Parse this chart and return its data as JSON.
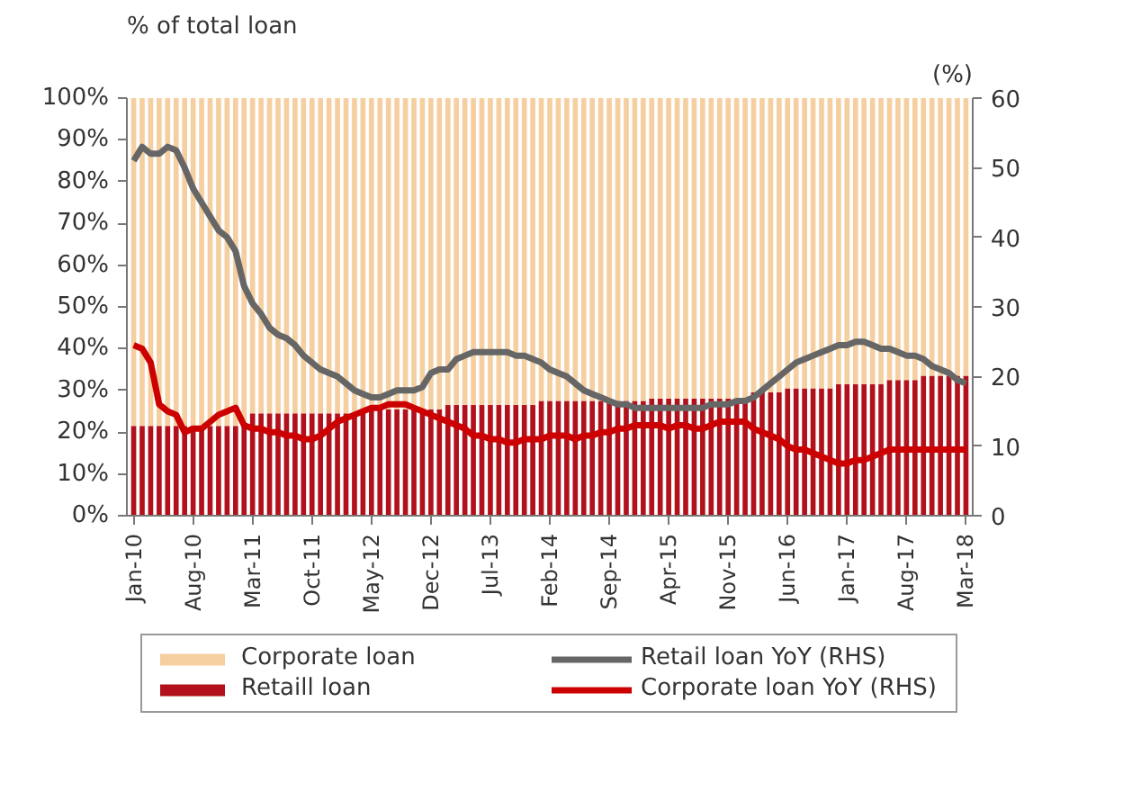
{
  "chart_data": {
    "type": "bar",
    "stacked": true,
    "ylabel": "% of total loan",
    "y2label": "(%)",
    "categories": [
      "Jan-10",
      null,
      null,
      null,
      null,
      null,
      null,
      "Aug-10",
      null,
      null,
      null,
      null,
      null,
      null,
      "Mar-11",
      null,
      null,
      null,
      null,
      null,
      null,
      "Oct-11",
      null,
      null,
      null,
      null,
      null,
      null,
      "May-12",
      null,
      null,
      null,
      null,
      null,
      null,
      "Dec-12",
      null,
      null,
      null,
      null,
      null,
      null,
      "Jul-13",
      null,
      null,
      null,
      null,
      null,
      null,
      "Feb-14",
      null,
      null,
      null,
      null,
      null,
      null,
      "Sep-14",
      null,
      null,
      null,
      null,
      null,
      null,
      "Apr-15",
      null,
      null,
      null,
      null,
      null,
      null,
      "Nov-15",
      null,
      null,
      null,
      null,
      null,
      null,
      "Jun-16",
      null,
      null,
      null,
      null,
      null,
      null,
      "Jan-17",
      null,
      null,
      null,
      null,
      null,
      null,
      "Aug-17",
      null,
      null,
      null,
      null,
      null,
      null,
      "Mar-18"
    ],
    "series": [
      {
        "name": "Retaill loan",
        "color": "#b2101a",
        "values": [
          21.5,
          21.5,
          21.5,
          21.5,
          21.5,
          21.5,
          21.5,
          21.5,
          21.5,
          21.5,
          21.5,
          21.5,
          21.5,
          21.5,
          24.5,
          24.5,
          24.5,
          24.5,
          24.5,
          24.5,
          24.5,
          24.5,
          24.5,
          24.5,
          24.5,
          24.5,
          24.5,
          24.5,
          25.5,
          25.5,
          25.5,
          25.5,
          25.5,
          25.5,
          25.5,
          25.5,
          25.5,
          26.5,
          26.5,
          26.5,
          26.5,
          26.5,
          26.5,
          26.5,
          26.5,
          26.5,
          26.5,
          26.5,
          27.5,
          27.5,
          27.5,
          27.5,
          27.5,
          27.5,
          27.5,
          27.5,
          27.5,
          27.5,
          27.5,
          27.5,
          27.5,
          28,
          28,
          28,
          28,
          28,
          28,
          28,
          28,
          28,
          28,
          28,
          28,
          29.5,
          29.5,
          29.5,
          29.5,
          30.5,
          30.5,
          30.5,
          30.5,
          30.5,
          30.5,
          31.5,
          31.5,
          31.5,
          31.5,
          31.5,
          31.5,
          32.5,
          32.5,
          32.5,
          32.5,
          33.5,
          33.5,
          33.5,
          33.5,
          33.5,
          33.5
        ]
      },
      {
        "name": "Corporate loan",
        "color": "#f5cfa0",
        "values": [
          78.5,
          78.5,
          78.5,
          78.5,
          78.5,
          78.5,
          78.5,
          78.5,
          78.5,
          78.5,
          78.5,
          78.5,
          78.5,
          78.5,
          75.5,
          75.5,
          75.5,
          75.5,
          75.5,
          75.5,
          75.5,
          75.5,
          75.5,
          75.5,
          75.5,
          75.5,
          75.5,
          75.5,
          74.5,
          74.5,
          74.5,
          74.5,
          74.5,
          74.5,
          74.5,
          74.5,
          74.5,
          73.5,
          73.5,
          73.5,
          73.5,
          73.5,
          73.5,
          73.5,
          73.5,
          73.5,
          73.5,
          73.5,
          72.5,
          72.5,
          72.5,
          72.5,
          72.5,
          72.5,
          72.5,
          72.5,
          72.5,
          72.5,
          72.5,
          72.5,
          72.5,
          72,
          72,
          72,
          72,
          72,
          72,
          72,
          72,
          72,
          72,
          72,
          72,
          70.5,
          70.5,
          70.5,
          70.5,
          69.5,
          69.5,
          69.5,
          69.5,
          69.5,
          69.5,
          68.5,
          68.5,
          68.5,
          68.5,
          68.5,
          68.5,
          67.5,
          67.5,
          67.5,
          67.5,
          66.5,
          66.5,
          66.5,
          66.5,
          66.5,
          66.5
        ]
      },
      {
        "name": "Retail loan YoY (RHS)",
        "type": "line",
        "axis": "y2",
        "color": "#666666",
        "values": [
          51,
          53,
          52,
          52,
          53,
          52.5,
          50,
          47,
          45,
          43,
          41,
          40,
          38,
          33,
          30.5,
          29,
          27,
          26,
          25.5,
          24.5,
          23,
          22,
          21,
          20.5,
          20,
          19,
          18,
          17.5,
          17,
          17,
          17.5,
          18,
          18,
          18,
          18.5,
          20.5,
          21,
          21,
          22.5,
          23,
          23.5,
          23.5,
          23.5,
          23.5,
          23.5,
          23,
          23,
          22.5,
          22,
          21,
          20.5,
          20,
          19,
          18,
          17.5,
          17,
          16.5,
          16,
          16,
          15.5,
          15.5,
          15.5,
          15.5,
          15.5,
          15.5,
          15.5,
          15.5,
          15.5,
          16,
          16,
          16,
          16.5,
          16.5,
          17,
          18,
          19,
          20,
          21,
          22,
          22.5,
          23,
          23.5,
          24,
          24.5,
          24.5,
          25,
          25,
          24.5,
          24,
          24,
          23.5,
          23,
          23,
          22.5,
          21.5,
          21,
          20.5,
          19.5,
          19
        ]
      },
      {
        "name": "Corporate loan YoY (RHS)",
        "type": "line",
        "axis": "y2",
        "color": "#cc0000",
        "values": [
          24.5,
          24,
          22,
          16,
          15,
          14.5,
          12,
          12.5,
          12.5,
          13.5,
          14.5,
          15,
          15.5,
          13,
          12.5,
          12.5,
          12,
          12,
          11.5,
          11.5,
          11,
          11,
          11.5,
          12.5,
          13.5,
          14,
          14.5,
          15,
          15.5,
          15.5,
          16,
          16,
          16,
          15.5,
          15,
          14.5,
          14,
          13.5,
          13,
          12.5,
          11.5,
          11.5,
          11,
          11,
          10.5,
          10.5,
          11,
          11,
          11,
          11.5,
          11.5,
          11.5,
          11,
          11.5,
          11.5,
          12,
          12,
          12.5,
          12.5,
          13,
          13,
          13,
          13,
          12.5,
          13,
          13,
          12.5,
          12.5,
          13,
          13.5,
          13.5,
          13.5,
          13.5,
          12.5,
          12,
          11.5,
          11,
          10,
          9.5,
          9.5,
          9,
          8.5,
          8,
          7.5,
          7.5,
          8,
          8,
          8.5,
          9,
          9.5,
          9.5,
          9.5,
          9.5,
          9.5,
          9.5,
          9.5,
          9.5,
          9.5,
          9.5
        ]
      }
    ],
    "ylim": [
      0,
      100
    ],
    "yticks": [
      {
        "value": 0,
        "label": "0%"
      },
      {
        "value": 10,
        "label": "10%"
      },
      {
        "value": 20,
        "label": "20%"
      },
      {
        "value": 30,
        "label": "30%"
      },
      {
        "value": 40,
        "label": "40%"
      },
      {
        "value": 50,
        "label": "50%"
      },
      {
        "value": 60,
        "label": "60%"
      },
      {
        "value": 70,
        "label": "70%"
      },
      {
        "value": 80,
        "label": "80%"
      },
      {
        "value": 90,
        "label": "90%"
      },
      {
        "value": 100,
        "label": "100%"
      }
    ],
    "y2lim": [
      0,
      60
    ],
    "y2ticks": [
      0,
      10,
      20,
      30,
      40,
      50,
      60
    ],
    "legend": "bottom",
    "grid": false
  }
}
